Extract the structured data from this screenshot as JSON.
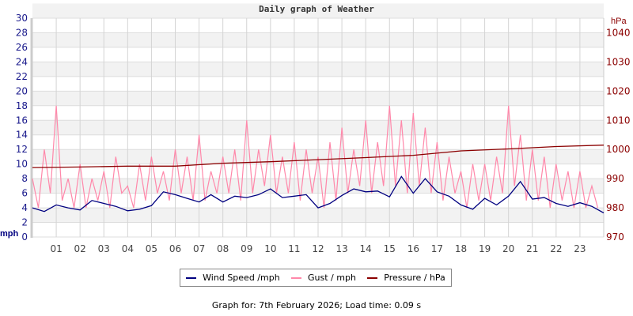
{
  "chart_data": {
    "type": "line",
    "title": "Daily graph of Weather",
    "x_tick_labels": [
      "01",
      "02",
      "03",
      "04",
      "05",
      "06",
      "07",
      "08",
      "09",
      "10",
      "11",
      "12",
      "13",
      "14",
      "15",
      "16",
      "17",
      "18",
      "19",
      "20",
      "21",
      "22",
      "23"
    ],
    "xlim_hours": [
      0,
      24
    ],
    "y_left": {
      "label": "mph",
      "range": [
        0,
        30
      ],
      "ticks": [
        "0",
        "2",
        "4",
        "6",
        "8",
        "10",
        "12",
        "14",
        "16",
        "18",
        "20",
        "22",
        "24",
        "26",
        "28",
        "30"
      ]
    },
    "y_right": {
      "label": "hPa",
      "range": [
        970,
        1045
      ],
      "ticks": [
        "970",
        "980",
        "990",
        "1000",
        "1010",
        "1020",
        "1030",
        "1040"
      ]
    },
    "grid": true,
    "legend_position": "bottom",
    "series": [
      {
        "name": "Wind Speed /mph",
        "color": "#000080",
        "axis": "left",
        "step_hours": 0.5,
        "values": [
          4.0,
          3.5,
          4.4,
          4.0,
          3.7,
          5.0,
          4.6,
          4.2,
          3.6,
          3.8,
          4.3,
          6.2,
          5.8,
          5.3,
          4.8,
          5.8,
          4.8,
          5.6,
          5.4,
          5.8,
          6.6,
          5.4,
          5.6,
          5.8,
          4.0,
          4.6,
          5.7,
          6.6,
          6.2,
          6.3,
          5.5,
          8.3,
          6.0,
          8.0,
          6.2,
          5.6,
          4.4,
          3.8,
          5.3,
          4.4,
          5.6,
          7.6,
          5.2,
          5.4,
          4.6,
          4.2,
          4.7,
          4.2,
          3.3
        ]
      },
      {
        "name": "Gust / mph",
        "color": "#ff88aa",
        "axis": "left",
        "step_hours": 0.25,
        "values": [
          8,
          4,
          12,
          6,
          18,
          5,
          8,
          4,
          10,
          4,
          8,
          5,
          9,
          4,
          11,
          6,
          7,
          4,
          10,
          5,
          11,
          6,
          9,
          5,
          12,
          6,
          11,
          5,
          14,
          5,
          9,
          6,
          11,
          6,
          12,
          5,
          16,
          6,
          12,
          7,
          14,
          6,
          11,
          6,
          13,
          5,
          12,
          6,
          11,
          4,
          13,
          5,
          15,
          6,
          12,
          7,
          16,
          6,
          13,
          7,
          18,
          7,
          16,
          6,
          17,
          7,
          15,
          6,
          13,
          5,
          11,
          6,
          9,
          4,
          10,
          5,
          10,
          5,
          11,
          6,
          18,
          7,
          14,
          5,
          12,
          5,
          11,
          4,
          10,
          5,
          9,
          4,
          9,
          4,
          7,
          4
        ]
      },
      {
        "name": "Pressure / hPa",
        "color": "#8b0000",
        "axis": "right",
        "step_hours": 2,
        "values": [
          993.8,
          994.0,
          994.3,
          994.3,
          995.3,
          995.8,
          996.5,
          997.2,
          998.0,
          999.5,
          1000.2,
          1001.0,
          1001.5
        ]
      }
    ]
  },
  "footer": "Graph for: 7th February 2026; Load time: 0.09 s"
}
